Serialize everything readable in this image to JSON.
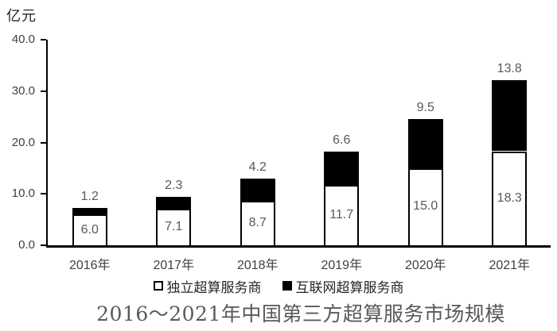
{
  "unit_label": "亿元",
  "chart_data": {
    "type": "bar",
    "stacked": true,
    "title": "2016～2021年中国第三方超算服务市场规模",
    "ylabel": "亿元",
    "categories": [
      "2016年",
      "2017年",
      "2018年",
      "2019年",
      "2020年",
      "2021年"
    ],
    "series": [
      {
        "name": "独立超算服务商",
        "color": "#ffffff",
        "values": [
          6.0,
          7.1,
          8.7,
          11.7,
          15.0,
          18.3
        ]
      },
      {
        "name": "互联网超算服务商",
        "color": "#000000",
        "values": [
          1.2,
          2.3,
          4.2,
          6.6,
          9.5,
          13.8
        ]
      }
    ],
    "y_ticks": [
      0.0,
      10.0,
      20.0,
      30.0,
      40.0
    ],
    "ylim": [
      0,
      40
    ],
    "grid": false,
    "legend_position": "bottom",
    "data_labels": true,
    "colors": {
      "axis": "#000000",
      "tick_label": "#404040",
      "data_label": "#595959",
      "title": "#595959",
      "legend_text": "#262626"
    }
  }
}
